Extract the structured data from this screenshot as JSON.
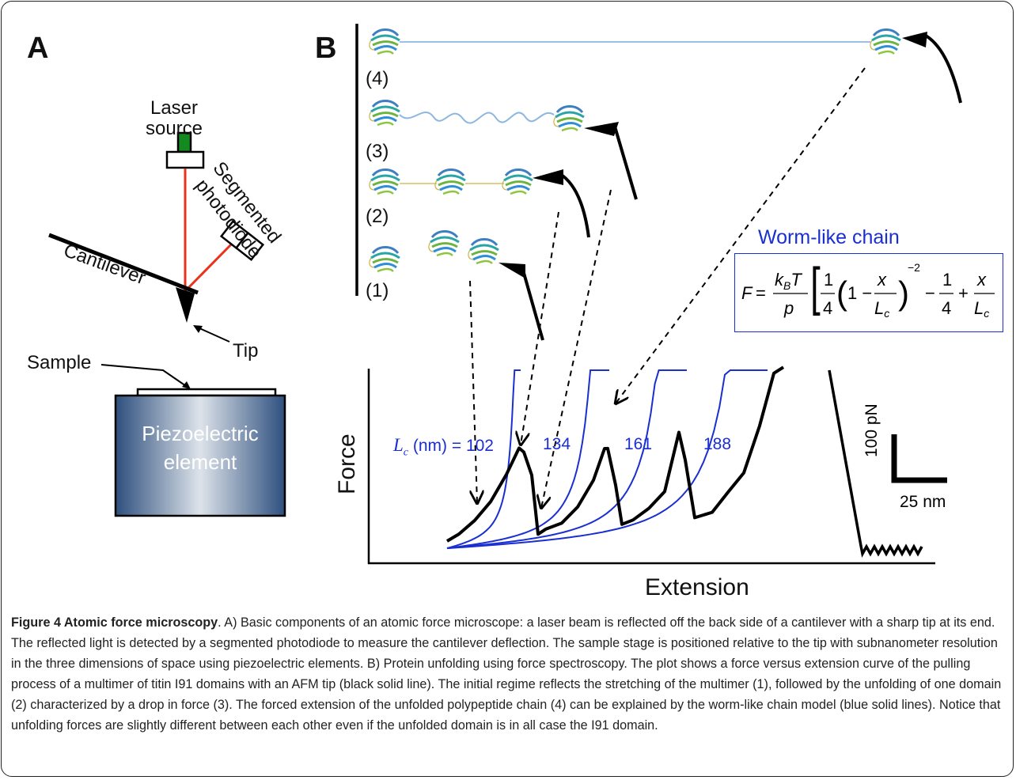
{
  "panel_a": {
    "letter": "A",
    "laser_source_line1": "Laser",
    "laser_source_line2": "source",
    "photodiode_line1": "Segmented",
    "photodiode_line2": "photodiode",
    "cantilever": "Cantilever",
    "tip": "Tip",
    "sample": "Sample",
    "piezo_line1": "Piezoelectric",
    "piezo_line2": "element"
  },
  "panel_b": {
    "letter": "B",
    "states": [
      "(4)",
      "(3)",
      "(2)",
      "(1)"
    ],
    "wlc_title": "Worm-like chain",
    "formula": "F = (k_B T / p) [ 1/4 (1 − x/L_c)^−2 − 1/4 + x/L_c ]",
    "lc_label": "(nm) = 102",
    "lc_values": [
      "134",
      "161",
      "188"
    ],
    "scale_force": "100 pN",
    "scale_ext": "25 nm",
    "y_axis": "Force",
    "x_axis": "Extension"
  },
  "caption": {
    "title": "Figure 4 Atomic force microscopy",
    "text": ". A) Basic components of an atomic force microscope: a laser beam is reflected off the back side of a cantilever with a sharp tip at its end. The reflected light is detected by a segmented photodiode to measure the cantilever deflection. The sample stage is positioned relative to the tip with subnanometer resolution in the three dimensions of space using piezoelectric elements. B) Protein unfolding using force spectroscopy. The plot shows a force versus extension curve of the pulling process of a multimer of titin I91 domains with an AFM tip (black solid line). The initial regime reflects the stretching of the multimer (1), followed by the unfolding of one domain (2) characterized by a drop in force (3). The forced extension of the unfolded polypeptide chain (4) can be explained by the worm-like chain model (blue solid lines). Notice that unfolding forces are slightly different between each other even if the unfolded domain is in all case the I91 domain."
  },
  "colors": {
    "wlc_blue": "#1a2fd1",
    "laser_red": "#e8341c",
    "laser_green": "#138a1f",
    "piezo_dark": "#2e4f7e",
    "piezo_light": "#dde3ea"
  },
  "icons": [
    "protein-domain-icon",
    "cantilever-tip-icon"
  ]
}
